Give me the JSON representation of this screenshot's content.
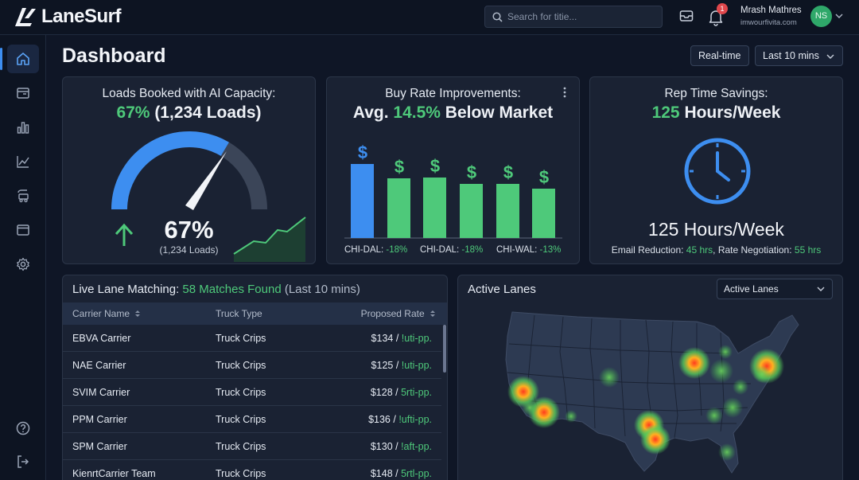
{
  "app": {
    "name": "LaneSurf"
  },
  "search": {
    "placeholder": "Search for titie..."
  },
  "notifications": {
    "count": "1"
  },
  "user": {
    "name": "Mrash Mathres",
    "org": "imwourfivita.com",
    "initials": "NS"
  },
  "page": {
    "title": "Dashboard"
  },
  "controls": {
    "realtime_label": "Real-time",
    "range_label": "Last 10 mins"
  },
  "sidebar": {
    "items": [
      {
        "icon": "home-icon",
        "active": true
      },
      {
        "icon": "inbox-icon"
      },
      {
        "icon": "bar-chart-icon"
      },
      {
        "icon": "line-chart-icon"
      },
      {
        "icon": "truck-icon"
      },
      {
        "icon": "browser-icon"
      },
      {
        "icon": "gear-icon"
      }
    ],
    "bottom": [
      {
        "icon": "help-icon"
      },
      {
        "icon": "logout-icon"
      }
    ]
  },
  "cards": {
    "loads": {
      "title": "Loads Booked with AI Capacity:",
      "headline_pct": "67%",
      "headline_rest": " (1,234 Loads)",
      "gauge_value": "67%",
      "gauge_sub": "(1,234 Loads)",
      "gauge_fraction": 0.67
    },
    "buy_rate": {
      "title": "Buy Rate Improvements:",
      "headline_pre": "Avg. ",
      "headline_pct": "14.5%",
      "headline_post": " Below Market",
      "dollar": "$",
      "labels": [
        {
          "lane": "CHI-DAL: ",
          "value": "-18%"
        },
        {
          "lane": "CHI-DAL: ",
          "value": "-18%"
        },
        {
          "lane": "CHI-WAL: ",
          "value": "-13%"
        }
      ]
    },
    "time": {
      "title": "Rep Time Savings:",
      "headline_num": "125",
      "headline_rest": " Hours/Week",
      "big": "125 Hours/Week",
      "email_label": "Email Reduction: ",
      "email_value": "45 hrs",
      "sep": ", ",
      "rate_label": "Rate Negotiation: ",
      "rate_value": "55 hrs"
    }
  },
  "live": {
    "title_pre": "Live Lane Matching: ",
    "title_count": "58 Matches Found",
    "title_post": " (Last 10 mins)",
    "columns": {
      "carrier": "Carrier Name",
      "truck": "Truck Type",
      "rate": "Proposed Rate"
    },
    "rows": [
      {
        "carrier": "EBVA Carrier",
        "truck": "Truck Crips",
        "rate": "$134 / ",
        "tag": "!uti-pp."
      },
      {
        "carrier": "NAE Carrier",
        "truck": "Truck Crips",
        "rate": "$125 / ",
        "tag": "!uti-pp."
      },
      {
        "carrier": "SVIM Carrier",
        "truck": "Truck Crips",
        "rate": "$128 / ",
        "tag": "5rti-pp."
      },
      {
        "carrier": "PPM Carrier",
        "truck": "Truck Crips",
        "rate": "$136 / ",
        "tag": "!ufti-pp."
      },
      {
        "carrier": "SPM Carrier",
        "truck": "Truck Crips",
        "rate": "$130 / ",
        "tag": "!aft-pp."
      },
      {
        "carrier": "KienrtCarrier Team",
        "truck": "Truck Crips",
        "rate": "$148 / ",
        "tag": "5rtl-pp."
      }
    ]
  },
  "active_lanes": {
    "title": "Active Lanes",
    "select_value": "Active Lanes"
  },
  "colors": {
    "accent_blue": "#3d8ef0",
    "accent_green": "#4ec97a",
    "bg": "#0f1626",
    "card": "#1a2233"
  }
}
